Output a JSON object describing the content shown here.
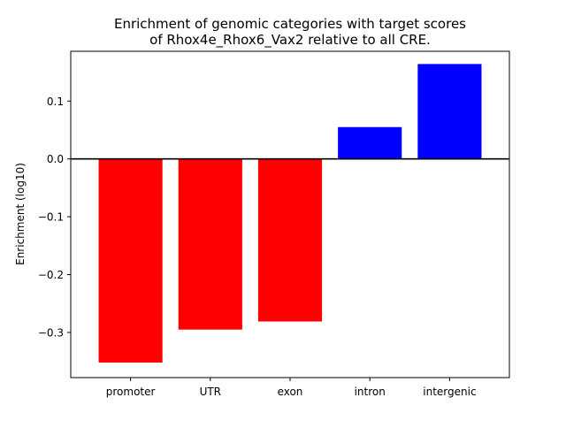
{
  "chart_data": {
    "type": "bar",
    "title_lines": [
      "Enrichment of genomic categories with target scores",
      "of Rhox4e_Rhox6_Vax2 relative to all CRE."
    ],
    "xlabel": "",
    "ylabel": "Enrichment (log10)",
    "categories": [
      "promoter",
      "UTR",
      "exon",
      "intron",
      "intergenic"
    ],
    "values": [
      -0.352,
      -0.295,
      -0.281,
      0.055,
      0.164
    ],
    "bar_colors": [
      "#ff0000",
      "#ff0000",
      "#ff0000",
      "#0000ff",
      "#0000ff"
    ],
    "ylim": [
      -0.378,
      0.186
    ],
    "yticks": [
      0.1,
      0.0,
      -0.1,
      -0.2,
      -0.3
    ],
    "ytick_labels": [
      "0.1",
      "0.0",
      "−0.1",
      "−0.2",
      "−0.3"
    ],
    "zero_line": true,
    "grid": false,
    "legend": "none"
  }
}
